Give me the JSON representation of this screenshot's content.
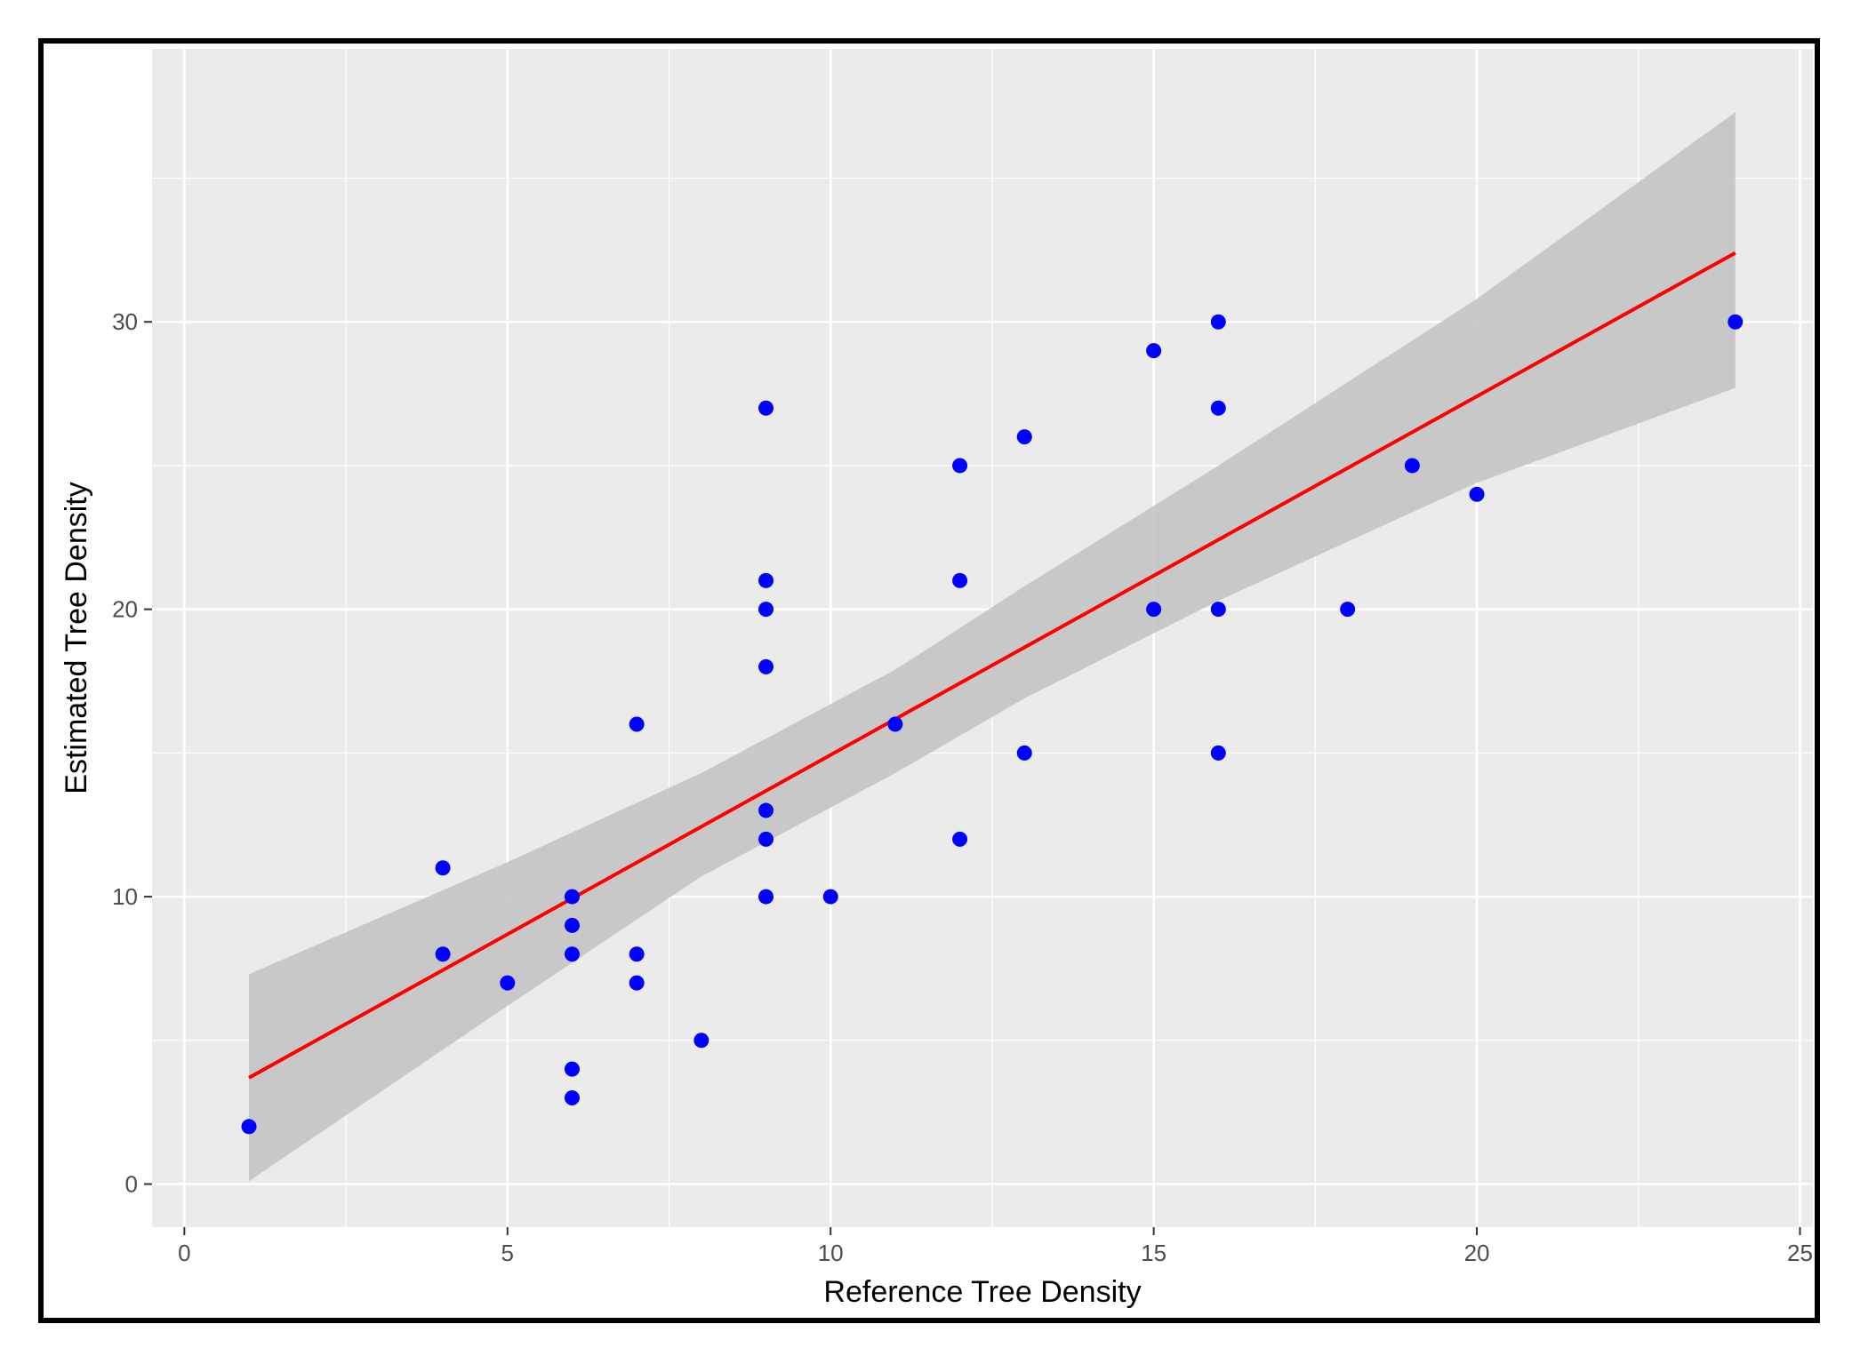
{
  "chart_data": {
    "type": "scatter",
    "title": "",
    "xlabel": "Reference Tree Density",
    "ylabel": "Estimated Tree Density",
    "xlim": [
      -0.5,
      25.2
    ],
    "ylim": [
      -1.5,
      39.5
    ],
    "x_ticks": [
      0,
      5,
      10,
      15,
      20,
      25
    ],
    "x_tick_labels": [
      "0",
      "5",
      "10",
      "15",
      "20",
      "25"
    ],
    "y_ticks": [
      0,
      10,
      20,
      30
    ],
    "y_tick_labels": [
      "0",
      "10",
      "20",
      "30"
    ],
    "x_minor_ticks": [
      2.5,
      7.5,
      12.5,
      17.5,
      22.5
    ],
    "y_minor_ticks": [
      5,
      15,
      25,
      35
    ],
    "grid": true,
    "legend": "none",
    "colors": {
      "panel_bg": "#ebebeb",
      "grid": "#ffffff",
      "points": "#0000ff",
      "fit_line": "#ff0000",
      "confidence_band": "#c4c4c4"
    },
    "points": [
      {
        "x": 1,
        "y": 2
      },
      {
        "x": 4,
        "y": 11
      },
      {
        "x": 4,
        "y": 8
      },
      {
        "x": 5,
        "y": 7
      },
      {
        "x": 6,
        "y": 10
      },
      {
        "x": 6,
        "y": 9
      },
      {
        "x": 6,
        "y": 8
      },
      {
        "x": 6,
        "y": 4
      },
      {
        "x": 6,
        "y": 3
      },
      {
        "x": 7,
        "y": 16
      },
      {
        "x": 7,
        "y": 8
      },
      {
        "x": 7,
        "y": 7
      },
      {
        "x": 8,
        "y": 5
      },
      {
        "x": 9,
        "y": 27
      },
      {
        "x": 9,
        "y": 21
      },
      {
        "x": 9,
        "y": 20
      },
      {
        "x": 9,
        "y": 18
      },
      {
        "x": 9,
        "y": 13
      },
      {
        "x": 9,
        "y": 12
      },
      {
        "x": 9,
        "y": 10
      },
      {
        "x": 10,
        "y": 10
      },
      {
        "x": 11,
        "y": 16
      },
      {
        "x": 12,
        "y": 25
      },
      {
        "x": 12,
        "y": 21
      },
      {
        "x": 12,
        "y": 12
      },
      {
        "x": 13,
        "y": 26
      },
      {
        "x": 13,
        "y": 15
      },
      {
        "x": 15,
        "y": 29
      },
      {
        "x": 15,
        "y": 20
      },
      {
        "x": 16,
        "y": 30
      },
      {
        "x": 16,
        "y": 27
      },
      {
        "x": 16,
        "y": 20
      },
      {
        "x": 16,
        "y": 15
      },
      {
        "x": 18,
        "y": 20
      },
      {
        "x": 19,
        "y": 25
      },
      {
        "x": 20,
        "y": 24
      },
      {
        "x": 24,
        "y": 30
      }
    ],
    "fit": {
      "method": "linear",
      "x_range": [
        1,
        24
      ],
      "y_at_start": 3.7,
      "y_at_end": 32.4
    },
    "confidence_band": [
      {
        "x": 1,
        "lower": 0.1,
        "upper": 7.3
      },
      {
        "x": 5,
        "lower": 6.2,
        "upper": 11.2
      },
      {
        "x": 8,
        "lower": 10.7,
        "upper": 14.3
      },
      {
        "x": 11,
        "lower": 14.3,
        "upper": 17.9
      },
      {
        "x": 13,
        "lower": 16.9,
        "upper": 20.8
      },
      {
        "x": 16,
        "lower": 20.3,
        "upper": 25.0
      },
      {
        "x": 20,
        "lower": 24.4,
        "upper": 30.8
      },
      {
        "x": 24,
        "lower": 27.7,
        "upper": 37.3
      }
    ]
  }
}
